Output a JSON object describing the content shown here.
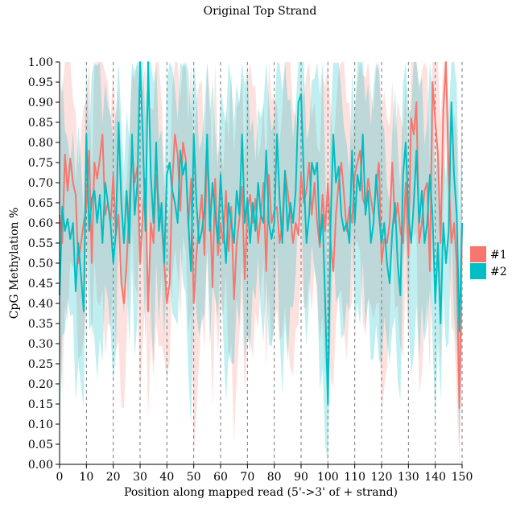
{
  "chart_data": {
    "type": "line",
    "title": "Original Top Strand",
    "xlabel": "Position along mapped read (5'->3' of + strand)",
    "ylabel": "CpG Methylation %",
    "xlim": [
      0,
      150
    ],
    "ylim": [
      0,
      1
    ],
    "xticks": [
      0,
      10,
      20,
      30,
      40,
      50,
      60,
      70,
      80,
      90,
      100,
      110,
      120,
      130,
      140,
      150
    ],
    "yticks": [
      0,
      0.05,
      0.1,
      0.15,
      0.2,
      0.25,
      0.3,
      0.35,
      0.4,
      0.45,
      0.5,
      0.55,
      0.6,
      0.65,
      0.7,
      0.75,
      0.8,
      0.85,
      0.9,
      0.95,
      1.0
    ],
    "xtick_labels": [
      "0",
      "10",
      "20",
      "30",
      "40",
      "50",
      "60",
      "70",
      "80",
      "90",
      "100",
      "110",
      "120",
      "130",
      "140",
      "150"
    ],
    "ytick_labels": [
      "0.00",
      "0.05",
      "0.10",
      "0.15",
      "0.20",
      "0.25",
      "0.30",
      "0.35",
      "0.40",
      "0.45",
      "0.50",
      "0.55",
      "0.60",
      "0.65",
      "0.70",
      "0.75",
      "0.80",
      "0.85",
      "0.90",
      "0.95",
      "1.00"
    ],
    "vlines": [
      10,
      20,
      30,
      40,
      50,
      60,
      70,
      80,
      90,
      100,
      110,
      120,
      130,
      140,
      150
    ],
    "legend_position": "right",
    "series": [
      {
        "name": "#1",
        "color": "#F8766D",
        "band_color": "#F8766D",
        "x": [
          0,
          1,
          2,
          3,
          4,
          5,
          6,
          7,
          8,
          9,
          10,
          11,
          12,
          13,
          14,
          15,
          16,
          17,
          18,
          19,
          20,
          21,
          22,
          23,
          24,
          25,
          26,
          27,
          28,
          29,
          30,
          31,
          32,
          33,
          34,
          35,
          36,
          37,
          38,
          39,
          40,
          41,
          42,
          43,
          44,
          45,
          46,
          47,
          48,
          49,
          50,
          51,
          52,
          53,
          54,
          55,
          56,
          57,
          58,
          59,
          60,
          61,
          62,
          63,
          64,
          65,
          66,
          67,
          68,
          69,
          70,
          71,
          72,
          73,
          74,
          75,
          76,
          77,
          78,
          79,
          80,
          81,
          82,
          83,
          84,
          85,
          86,
          87,
          88,
          89,
          90,
          91,
          92,
          93,
          94,
          95,
          96,
          97,
          98,
          99,
          100,
          101,
          102,
          103,
          104,
          105,
          106,
          107,
          108,
          109,
          110,
          111,
          112,
          113,
          114,
          115,
          116,
          117,
          118,
          119,
          120,
          121,
          122,
          123,
          124,
          125,
          126,
          127,
          128,
          129,
          130,
          131,
          132,
          133,
          134,
          135,
          136,
          137,
          138,
          139,
          140,
          141,
          142,
          143,
          144,
          145,
          146,
          147,
          148,
          149,
          150
        ],
        "values": [
          0.62,
          0.55,
          0.77,
          0.68,
          0.76,
          0.7,
          0.67,
          0.5,
          0.55,
          0.6,
          0.64,
          0.78,
          0.5,
          0.75,
          0.71,
          0.76,
          0.82,
          0.62,
          0.65,
          0.6,
          0.72,
          0.57,
          0.62,
          0.45,
          0.4,
          0.5,
          0.65,
          0.78,
          0.7,
          0.74,
          0.5,
          0.62,
          0.71,
          0.38,
          0.6,
          0.55,
          0.72,
          0.65,
          0.6,
          0.5,
          0.4,
          0.45,
          0.7,
          0.82,
          0.77,
          0.63,
          0.8,
          0.76,
          0.59,
          0.71,
          0.4,
          0.52,
          0.6,
          0.67,
          0.52,
          0.78,
          0.65,
          0.44,
          0.71,
          0.52,
          0.6,
          0.55,
          0.68,
          0.53,
          0.64,
          0.41,
          0.55,
          0.61,
          0.69,
          0.46,
          0.63,
          0.67,
          0.6,
          0.66,
          0.55,
          0.62,
          0.7,
          0.48,
          0.72,
          0.6,
          0.63,
          0.64,
          0.55,
          0.6,
          0.73,
          0.68,
          0.62,
          0.55,
          0.6,
          0.57,
          0.72,
          0.65,
          0.68,
          0.75,
          0.62,
          0.7,
          0.6,
          0.54,
          0.67,
          0.58,
          0.7,
          0.55,
          0.48,
          0.62,
          0.7,
          0.75,
          0.67,
          0.58,
          0.64,
          0.6,
          0.72,
          0.75,
          0.78,
          0.66,
          0.64,
          0.71,
          0.66,
          0.62,
          0.69,
          0.75,
          0.5,
          0.56,
          0.55,
          0.6,
          0.75,
          0.6,
          0.65,
          0.58,
          0.55,
          0.7,
          0.52,
          0.86,
          0.82,
          0.9,
          0.55,
          0.6,
          0.68,
          0.7,
          0.48,
          0.95,
          0.85,
          0.77,
          0.55,
          0.88,
          1.0,
          0.72,
          0.55,
          0.6,
          0.5,
          0.14,
          0.6
        ]
      },
      {
        "name": "#2",
        "color": "#00BFC4",
        "band_color": "#00BFC4",
        "x": [
          0,
          1,
          2,
          3,
          4,
          5,
          6,
          7,
          8,
          9,
          10,
          11,
          12,
          13,
          14,
          15,
          16,
          17,
          18,
          19,
          20,
          21,
          22,
          23,
          24,
          25,
          26,
          27,
          28,
          29,
          30,
          31,
          32,
          33,
          34,
          35,
          36,
          37,
          38,
          39,
          40,
          41,
          42,
          43,
          44,
          45,
          46,
          47,
          48,
          49,
          50,
          51,
          52,
          53,
          54,
          55,
          56,
          57,
          58,
          59,
          60,
          61,
          62,
          63,
          64,
          65,
          66,
          67,
          68,
          69,
          70,
          71,
          72,
          73,
          74,
          75,
          76,
          77,
          78,
          79,
          80,
          81,
          82,
          83,
          84,
          85,
          86,
          87,
          88,
          89,
          90,
          91,
          92,
          93,
          94,
          95,
          96,
          97,
          98,
          99,
          100,
          101,
          102,
          103,
          104,
          105,
          106,
          107,
          108,
          109,
          110,
          111,
          112,
          113,
          114,
          115,
          116,
          117,
          118,
          119,
          120,
          121,
          122,
          123,
          124,
          125,
          126,
          127,
          128,
          129,
          130,
          131,
          132,
          133,
          134,
          135,
          136,
          137,
          138,
          139,
          140,
          141,
          142,
          143,
          144,
          145,
          146,
          147,
          148,
          149,
          150
        ],
        "values": [
          0.42,
          0.64,
          0.58,
          0.61,
          0.56,
          0.6,
          0.43,
          0.55,
          0.47,
          0.38,
          0.82,
          0.58,
          0.66,
          0.68,
          0.6,
          0.67,
          0.55,
          0.7,
          0.65,
          0.6,
          0.5,
          0.58,
          0.85,
          0.65,
          0.55,
          0.68,
          0.55,
          0.82,
          0.62,
          0.7,
          1.0,
          0.82,
          0.58,
          1.0,
          0.72,
          0.6,
          0.8,
          0.58,
          0.65,
          0.5,
          0.72,
          0.75,
          0.68,
          0.65,
          0.6,
          0.78,
          0.72,
          0.75,
          0.6,
          0.48,
          0.82,
          0.65,
          0.55,
          0.58,
          0.63,
          0.82,
          0.58,
          0.7,
          0.62,
          0.55,
          0.72,
          0.6,
          0.5,
          0.65,
          0.6,
          0.55,
          0.68,
          0.62,
          0.82,
          0.6,
          0.66,
          0.55,
          0.65,
          0.58,
          0.7,
          0.62,
          0.6,
          0.78,
          0.6,
          0.56,
          0.6,
          0.82,
          0.66,
          0.55,
          0.73,
          0.58,
          0.65,
          0.6,
          0.68,
          0.9,
          0.92,
          0.72,
          0.55,
          0.62,
          0.75,
          0.72,
          0.75,
          0.55,
          0.62,
          0.4,
          0.15,
          0.6,
          0.82,
          0.7,
          0.74,
          0.62,
          0.58,
          0.6,
          0.55,
          0.78,
          0.6,
          0.72,
          0.68,
          0.82,
          0.62,
          0.68,
          0.55,
          0.6,
          0.72,
          0.62,
          0.55,
          0.6,
          0.5,
          0.45,
          0.58,
          0.65,
          0.5,
          0.42,
          0.72,
          0.8,
          0.62,
          0.55,
          0.65,
          0.78,
          0.6,
          0.68,
          0.55,
          0.6,
          0.72,
          0.62,
          0.4,
          0.55,
          0.35,
          0.6,
          0.5,
          0.58,
          0.9,
          0.72,
          0.62,
          0.33,
          0.6
        ]
      }
    ]
  }
}
